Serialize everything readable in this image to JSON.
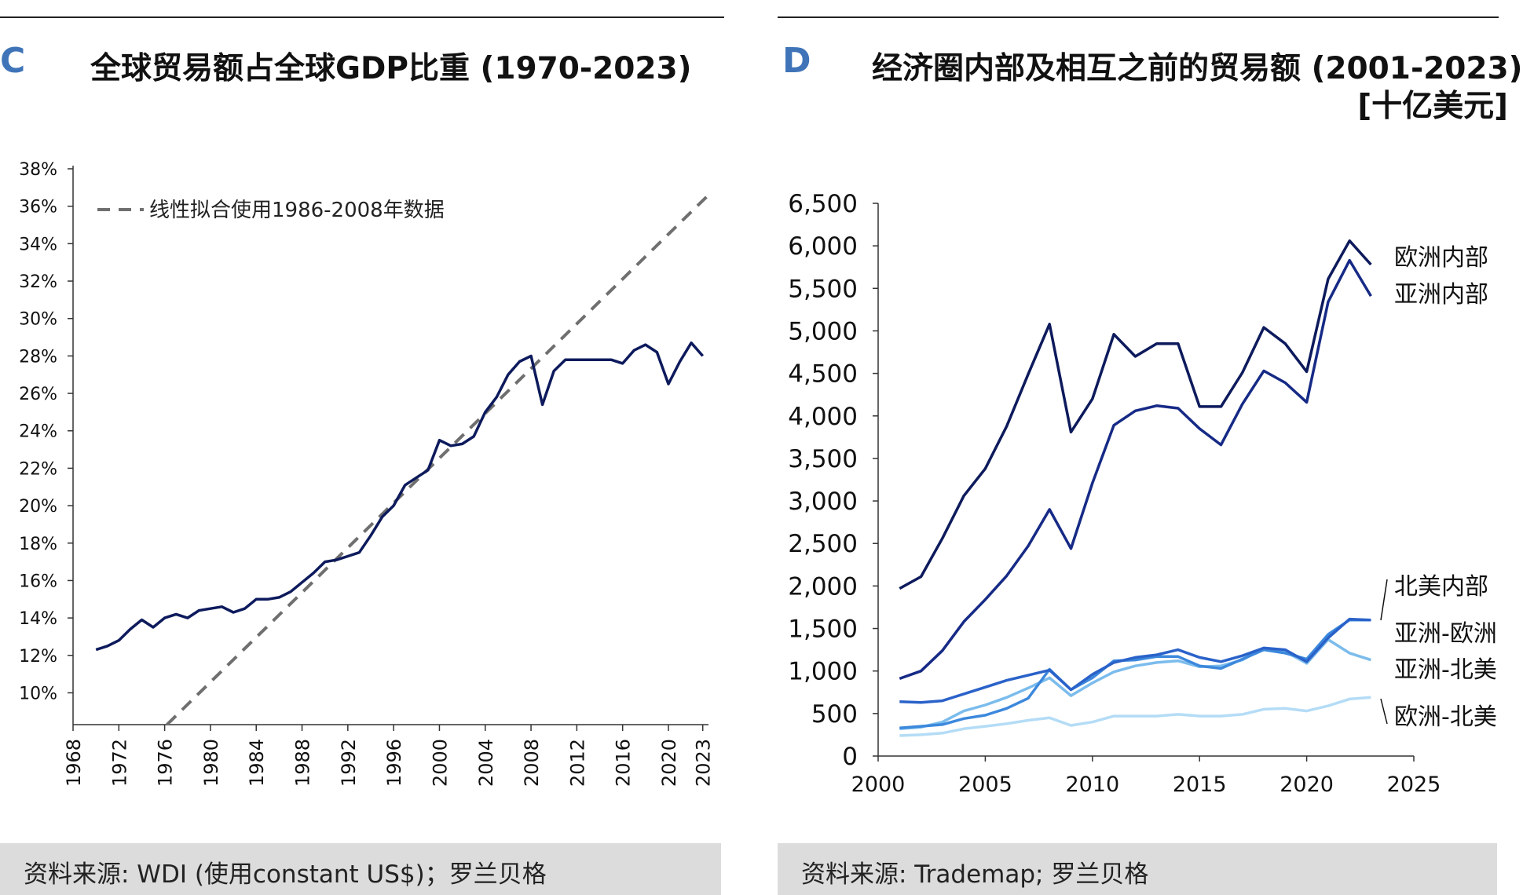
{
  "panel_c": {
    "letter": "C",
    "title": "全球贸易额占全球GDP比重 (1970-2023)",
    "source": "资料来源: WDI (使用constant US$)；罗兰贝格"
  },
  "panel_d": {
    "letter": "D",
    "title_line1": "经济圈内部及相互之前的贸易额 (2001-2023)",
    "title_line2": "[十亿美元]",
    "source": "资料来源: Trademap; 罗兰贝格"
  },
  "colors": {
    "navy": "#0d1a5c",
    "dark_blue": "#162a86",
    "mid_blue": "#2a62c9",
    "blue": "#3c88dc",
    "light_blue": "#7bbcec",
    "pale_blue": "#b4dcf6",
    "fit_gray": "#6f6f6f",
    "accent": "#3f74b8"
  },
  "chart_data": [
    {
      "type": "line",
      "y_ticks": [
        "38%",
        "36%",
        "34%",
        "32%",
        "30%",
        "28%",
        "26%",
        "24%",
        "22%",
        "20%",
        "18%",
        "16%",
        "14%",
        "12%",
        "10%"
      ],
      "x_ticks": [
        "1968",
        "1972",
        "1976",
        "1980",
        "1984",
        "1988",
        "1992",
        "1996",
        "2000",
        "2004",
        "2008",
        "2012",
        "2016",
        "2020",
        "2023"
      ],
      "xlim": [
        1968,
        2023.5
      ],
      "ylim": [
        8.3,
        38
      ],
      "legend": "线性拟合使用1986-2008年数据",
      "legend_position": "top-left",
      "series": [
        {
          "color": "navy",
          "x": [
            1970,
            1971,
            1972,
            1973,
            1974,
            1975,
            1976,
            1977,
            1978,
            1979,
            1980,
            1981,
            1982,
            1983,
            1984,
            1985,
            1986,
            1987,
            1988,
            1989,
            1990,
            1991,
            1992,
            1993,
            1994,
            1995,
            1996,
            1997,
            1998,
            1999,
            2000,
            2001,
            2002,
            2003,
            2004,
            2005,
            2006,
            2007,
            2008,
            2009,
            2010,
            2011,
            2012,
            2013,
            2014,
            2015,
            2016,
            2017,
            2018,
            2019,
            2020,
            2021,
            2022,
            2023
          ],
          "y": [
            12.3,
            12.5,
            12.8,
            13.4,
            13.9,
            13.5,
            14.0,
            14.2,
            14.0,
            14.4,
            14.5,
            14.6,
            14.3,
            14.5,
            15.0,
            15.0,
            15.1,
            15.4,
            15.9,
            16.4,
            17.0,
            17.1,
            17.3,
            17.5,
            18.4,
            19.4,
            20.0,
            21.1,
            21.5,
            21.9,
            23.5,
            23.2,
            23.3,
            23.7,
            25.0,
            25.8,
            27.0,
            27.7,
            28.0,
            25.4,
            27.2,
            27.8,
            27.8,
            27.8,
            27.8,
            27.8,
            27.6,
            28.3,
            28.6,
            28.2,
            26.5,
            27.7,
            28.7,
            28.0
          ]
        },
        {
          "kind": "linear-fit",
          "color": "fit_gray",
          "x": [
            1976.2,
            2023.5
          ],
          "y": [
            8.3,
            36.6
          ]
        }
      ]
    },
    {
      "type": "line",
      "y_ticks": [
        "6,500",
        "6,000",
        "5,500",
        "5,000",
        "4,500",
        "4,000",
        "3,500",
        "3,000",
        "2,500",
        "2,000",
        "1,500",
        "1,000",
        "500",
        "0"
      ],
      "x_ticks": [
        "2000",
        "2005",
        "2010",
        "2015",
        "2020",
        "2025"
      ],
      "xlim": [
        2000,
        2025
      ],
      "ylim": [
        0,
        6500
      ],
      "x": [
        2001,
        2002,
        2003,
        2004,
        2005,
        2006,
        2007,
        2008,
        2009,
        2010,
        2011,
        2012,
        2013,
        2014,
        2015,
        2016,
        2017,
        2018,
        2019,
        2020,
        2021,
        2022,
        2023
      ],
      "series": [
        {
          "name": "欧洲内部",
          "color": "navy",
          "values": [
            1970,
            2110,
            2560,
            3060,
            3380,
            3880,
            4490,
            5080,
            3810,
            4200,
            4960,
            4700,
            4850,
            4850,
            4110,
            4110,
            4510,
            5040,
            4850,
            4520,
            5610,
            6060,
            5780
          ]
        },
        {
          "name": "亚洲内部",
          "color": "dark_blue",
          "values": [
            910,
            1000,
            1240,
            1580,
            1840,
            2120,
            2470,
            2900,
            2440,
            3210,
            3890,
            4060,
            4120,
            4090,
            3850,
            3660,
            4140,
            4530,
            4390,
            4160,
            5340,
            5830,
            5410
          ]
        },
        {
          "name": "北美内部",
          "color": "mid_blue",
          "values": [
            640,
            630,
            650,
            730,
            810,
            890,
            950,
            1010,
            780,
            960,
            1100,
            1160,
            1190,
            1250,
            1160,
            1110,
            1180,
            1270,
            1250,
            1110,
            1390,
            1610,
            1600
          ]
        },
        {
          "name": "亚洲-欧洲",
          "color": "blue",
          "values": [
            330,
            350,
            370,
            440,
            480,
            560,
            680,
            1020,
            780,
            920,
            1120,
            1130,
            1170,
            1170,
            1060,
            1030,
            1140,
            1250,
            1210,
            1140,
            1430,
            1600,
            1600
          ]
        },
        {
          "name": "亚洲-北美",
          "color": "light_blue",
          "values": [
            320,
            340,
            400,
            530,
            600,
            690,
            800,
            920,
            710,
            860,
            990,
            1060,
            1100,
            1120,
            1050,
            1060,
            1130,
            1270,
            1230,
            1090,
            1370,
            1210,
            1130
          ]
        },
        {
          "name": "欧洲-北美",
          "color": "pale_blue",
          "values": [
            240,
            250,
            270,
            320,
            350,
            380,
            420,
            450,
            360,
            400,
            470,
            470,
            470,
            490,
            470,
            470,
            490,
            550,
            560,
            530,
            590,
            670,
            690
          ]
        }
      ]
    }
  ]
}
